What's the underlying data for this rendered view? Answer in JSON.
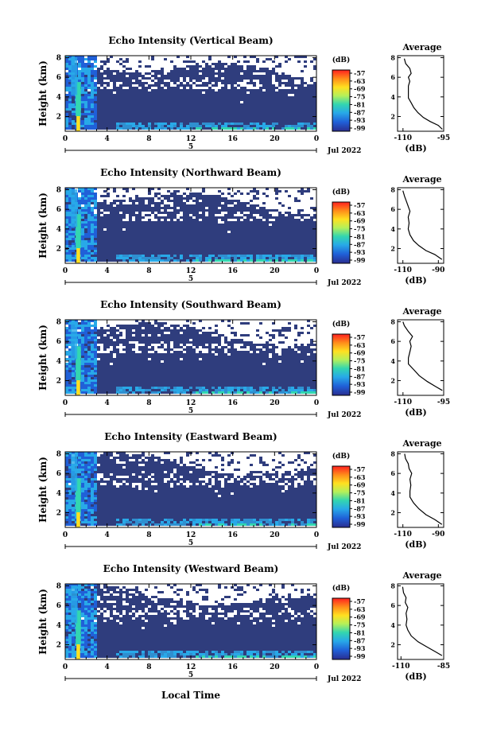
{
  "chart_data": [
    {
      "type": "heatmap",
      "title": "Echo Intensity (Vertical Beam)",
      "ylabel": "Height (km)",
      "x_ticks": [
        "0",
        "4",
        "8",
        "12",
        "16",
        "20",
        "0"
      ],
      "y_ticks": [
        "2",
        "4",
        "6",
        "8"
      ],
      "date_label": "5",
      "date_suffix": "Jul 2022",
      "xlim": [
        0,
        24
      ],
      "ylim": [
        0.5,
        8.2
      ],
      "colorbar": {
        "unit": "(dB)",
        "ticks": [
          "-57",
          "-63",
          "-69",
          "-75",
          "-81",
          "-87",
          "-93",
          "-99"
        ]
      },
      "profile": {
        "title": "Average",
        "xlabel": "(dB)",
        "xticks": [
          "-110",
          "-95"
        ],
        "xlim": [
          -112,
          -95
        ],
        "yticks": [
          "2",
          "4",
          "6",
          "8"
        ],
        "points": [
          [
            -95.5,
            0.7
          ],
          [
            -97,
            1.1
          ],
          [
            -100,
            1.5
          ],
          [
            -102.5,
            1.9
          ],
          [
            -104.5,
            2.4
          ],
          [
            -106,
            2.9
          ],
          [
            -107,
            3.4
          ],
          [
            -108,
            3.9
          ],
          [
            -108,
            4.5
          ],
          [
            -108,
            5.1
          ],
          [
            -107.5,
            5.6
          ],
          [
            -108,
            6.0
          ],
          [
            -107,
            6.4
          ],
          [
            -107.5,
            6.9
          ],
          [
            -109,
            7.4
          ],
          [
            -109.5,
            7.9
          ]
        ]
      }
    },
    {
      "type": "heatmap",
      "title": "Echo Intensity (Northward Beam)",
      "ylabel": "Height (km)",
      "x_ticks": [
        "0",
        "4",
        "8",
        "12",
        "16",
        "20",
        "0"
      ],
      "y_ticks": [
        "2",
        "4",
        "6",
        "8"
      ],
      "date_label": "5",
      "date_suffix": "Jul 2022",
      "xlim": [
        0,
        24
      ],
      "ylim": [
        0.5,
        8.2
      ],
      "colorbar": {
        "unit": "(dB)",
        "ticks": [
          "-57",
          "-63",
          "-69",
          "-75",
          "-81",
          "-87",
          "-93",
          "-99"
        ]
      },
      "profile": {
        "title": "Average",
        "xlabel": "(dB)",
        "xticks": [
          "-110",
          "-90"
        ],
        "xlim": [
          -113,
          -87
        ],
        "yticks": [
          "2",
          "4",
          "6",
          "8"
        ],
        "points": [
          [
            -88,
            0.9
          ],
          [
            -92,
            1.4
          ],
          [
            -97,
            1.8
          ],
          [
            -101,
            2.3
          ],
          [
            -104,
            2.8
          ],
          [
            -106,
            3.4
          ],
          [
            -107,
            4.0
          ],
          [
            -106.5,
            4.6
          ],
          [
            -107,
            5.2
          ],
          [
            -106,
            5.8
          ],
          [
            -107,
            6.3
          ],
          [
            -108,
            6.8
          ],
          [
            -109,
            7.3
          ],
          [
            -110,
            7.9
          ]
        ]
      }
    },
    {
      "type": "heatmap",
      "title": "Echo Intensity (Southward Beam)",
      "ylabel": "Height (km)",
      "x_ticks": [
        "0",
        "4",
        "8",
        "12",
        "16",
        "20",
        "0"
      ],
      "y_ticks": [
        "2",
        "4",
        "6",
        "8"
      ],
      "date_label": "5",
      "date_suffix": "Jul 2022",
      "xlim": [
        0,
        24
      ],
      "ylim": [
        0.5,
        8.2
      ],
      "colorbar": {
        "unit": "(dB)",
        "ticks": [
          "-57",
          "-63",
          "-69",
          "-75",
          "-81",
          "-87",
          "-93",
          "-99"
        ]
      },
      "profile": {
        "title": "Average",
        "xlabel": "(dB)",
        "xticks": [
          "-110",
          "-95"
        ],
        "xlim": [
          -112,
          -95
        ],
        "yticks": [
          "2",
          "4",
          "6",
          "8"
        ],
        "points": [
          [
            -95.5,
            1.0
          ],
          [
            -98,
            1.4
          ],
          [
            -101,
            1.9
          ],
          [
            -104,
            2.5
          ],
          [
            -106,
            3.1
          ],
          [
            -108,
            3.7
          ],
          [
            -108,
            4.3
          ],
          [
            -107.5,
            4.9
          ],
          [
            -107,
            5.5
          ],
          [
            -107.5,
            6.0
          ],
          [
            -106.5,
            6.5
          ],
          [
            -108,
            7.0
          ],
          [
            -109.5,
            7.6
          ],
          [
            -110,
            8.0
          ]
        ]
      }
    },
    {
      "type": "heatmap",
      "title": "Echo Intensity (Eastward Beam)",
      "ylabel": "Height (km)",
      "x_ticks": [
        "0",
        "4",
        "8",
        "12",
        "16",
        "20",
        "0"
      ],
      "y_ticks": [
        "2",
        "4",
        "6",
        "8"
      ],
      "date_label": "5",
      "date_suffix": "Jul 2022",
      "xlim": [
        0,
        24
      ],
      "ylim": [
        0.5,
        8.2
      ],
      "colorbar": {
        "unit": "(dB)",
        "ticks": [
          "-57",
          "-63",
          "-69",
          "-75",
          "-81",
          "-87",
          "-93",
          "-99"
        ]
      },
      "profile": {
        "title": "Average",
        "xlabel": "(dB)",
        "xticks": [
          "-110",
          "-90"
        ],
        "xlim": [
          -113,
          -87
        ],
        "yticks": [
          "2",
          "4",
          "6",
          "8"
        ],
        "points": [
          [
            -88,
            0.8
          ],
          [
            -92,
            1.3
          ],
          [
            -97,
            1.8
          ],
          [
            -101,
            2.4
          ],
          [
            -104,
            3.0
          ],
          [
            -106,
            3.6
          ],
          [
            -106,
            4.2
          ],
          [
            -105.5,
            4.8
          ],
          [
            -106,
            5.4
          ],
          [
            -105,
            6.0
          ],
          [
            -106.5,
            6.5
          ],
          [
            -107,
            7.0
          ],
          [
            -108.5,
            7.5
          ],
          [
            -109,
            8.0
          ]
        ]
      }
    },
    {
      "type": "heatmap",
      "title": "Echo Intensity (Westward Beam)",
      "ylabel": "Height (km)",
      "x_ticks": [
        "0",
        "4",
        "8",
        "12",
        "16",
        "20",
        "0"
      ],
      "y_ticks": [
        "2",
        "4",
        "6",
        "8"
      ],
      "date_label": "5",
      "date_suffix": "Jul 2022",
      "xlim": [
        0,
        24
      ],
      "ylim": [
        0.5,
        8.2
      ],
      "colorbar": {
        "unit": "(dB)",
        "ticks": [
          "-57",
          "-63",
          "-69",
          "-75",
          "-81",
          "-87",
          "-93",
          "-99"
        ]
      },
      "profile": {
        "title": "Average",
        "xlabel": "(dB)",
        "xticks": [
          "-110",
          "-85"
        ],
        "xlim": [
          -112,
          -85
        ],
        "yticks": [
          "2",
          "4",
          "6",
          "8"
        ],
        "points": [
          [
            -86,
            0.9
          ],
          [
            -90,
            1.3
          ],
          [
            -95,
            1.8
          ],
          [
            -100,
            2.3
          ],
          [
            -104,
            2.9
          ],
          [
            -106,
            3.5
          ],
          [
            -107,
            4.0
          ],
          [
            -106.5,
            4.6
          ],
          [
            -107,
            5.2
          ],
          [
            -106,
            5.8
          ],
          [
            -107.5,
            6.3
          ],
          [
            -107,
            6.8
          ],
          [
            -108.5,
            7.3
          ],
          [
            -109,
            7.9
          ]
        ]
      }
    }
  ],
  "xlabel": "Local Time",
  "colors": {
    "background_echo": "#2f3d7d",
    "colormap": [
      "#ff2020",
      "#ff8c1a",
      "#ffe020",
      "#b4f05a",
      "#33d6b0",
      "#28a9e8",
      "#2060d8",
      "#2a2d8f"
    ]
  }
}
